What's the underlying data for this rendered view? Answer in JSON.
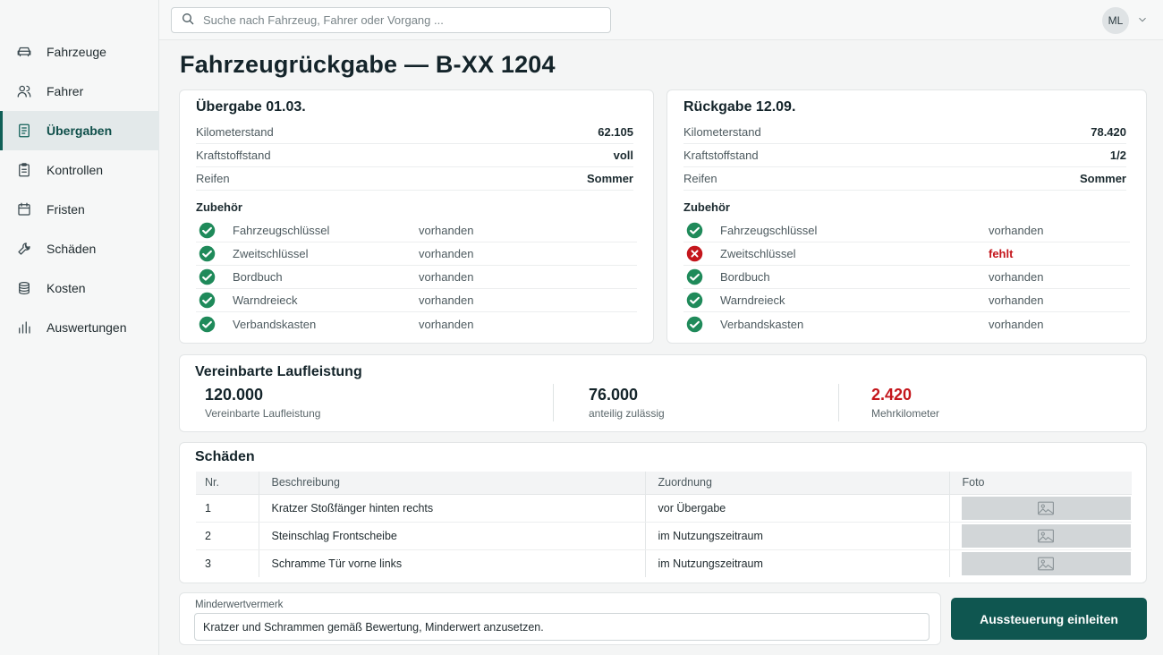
{
  "search": {
    "placeholder": "Suche nach Fahrzeug, Fahrer oder Vorgang ..."
  },
  "user": {
    "initials": "ML"
  },
  "sidebar": {
    "items": [
      {
        "label": "Fahrzeuge",
        "icon": "car-icon"
      },
      {
        "label": "Fahrer",
        "icon": "users-icon"
      },
      {
        "label": "Übergaben",
        "icon": "document-icon",
        "active": true
      },
      {
        "label": "Kontrollen",
        "icon": "clipboard-icon"
      },
      {
        "label": "Fristen",
        "icon": "calendar-icon"
      },
      {
        "label": "Schäden",
        "icon": "wrench-icon"
      },
      {
        "label": "Kosten",
        "icon": "coins-icon"
      },
      {
        "label": "Auswertungen",
        "icon": "bar-chart-icon"
      }
    ]
  },
  "page": {
    "title": "Fahrzeugrückgabe — B-XX 1204"
  },
  "handover": {
    "title": "Übergabe 01.03.",
    "fields": [
      {
        "label": "Kilometerstand",
        "value": "62.105"
      },
      {
        "label": "Kraftstoffstand",
        "value": "voll"
      },
      {
        "label": "Reifen",
        "value": "Sommer"
      }
    ],
    "accessories_title": "Zubehör",
    "accessories": [
      {
        "name": "Fahrzeugschlüssel",
        "status": "vorhanden",
        "ok": true
      },
      {
        "name": "Zweitschlüssel",
        "status": "vorhanden",
        "ok": true
      },
      {
        "name": "Bordbuch",
        "status": "vorhanden",
        "ok": true
      },
      {
        "name": "Warndreieck",
        "status": "vorhanden",
        "ok": true
      },
      {
        "name": "Verbandskasten",
        "status": "vorhanden",
        "ok": true
      }
    ]
  },
  "return": {
    "title": "Rückgabe 12.09.",
    "fields": [
      {
        "label": "Kilometerstand",
        "value": "78.420"
      },
      {
        "label": "Kraftstoffstand",
        "value": "1/2"
      },
      {
        "label": "Reifen",
        "value": "Sommer"
      }
    ],
    "accessories_title": "Zubehör",
    "accessories": [
      {
        "name": "Fahrzeugschlüssel",
        "status": "vorhanden",
        "ok": true
      },
      {
        "name": "Zweitschlüssel",
        "status": "fehlt",
        "ok": false
      },
      {
        "name": "Bordbuch",
        "status": "vorhanden",
        "ok": true
      },
      {
        "name": "Warndreieck",
        "status": "vorhanden",
        "ok": true
      },
      {
        "name": "Verbandskasten",
        "status": "vorhanden",
        "ok": true
      }
    ]
  },
  "mileage": {
    "title": "Vereinbarte Laufleistung",
    "items": [
      {
        "value": "120.000",
        "label": "Vereinbarte Laufleistung"
      },
      {
        "value": "76.000",
        "label": "anteilig zulässig"
      },
      {
        "value": "2.420",
        "label": "Mehrkilometer",
        "highlight": true
      }
    ]
  },
  "damages": {
    "title": "Schäden",
    "columns": [
      "Nr.",
      "Beschreibung",
      "Zuordnung",
      "Foto"
    ],
    "rows": [
      {
        "nr": "1",
        "description": "Kratzer Stoßfänger hinten rechts",
        "assignment": "vor Übergabe"
      },
      {
        "nr": "2",
        "description": "Steinschlag Frontscheibe",
        "assignment": "im Nutzungszeitraum"
      },
      {
        "nr": "3",
        "description": "Schramme Tür vorne links",
        "assignment": "im Nutzungszeitraum"
      }
    ]
  },
  "note": {
    "label": "Minderwertvermerk",
    "value": "Kratzer und Schrammen gemäß Bewertung, Minderwert anzusetzen."
  },
  "actions": {
    "primary_label": "Aussteuerung einleiten"
  },
  "colors": {
    "accent": "#0f5650",
    "ok": "#1f8a5a",
    "error": "#c4161c"
  }
}
